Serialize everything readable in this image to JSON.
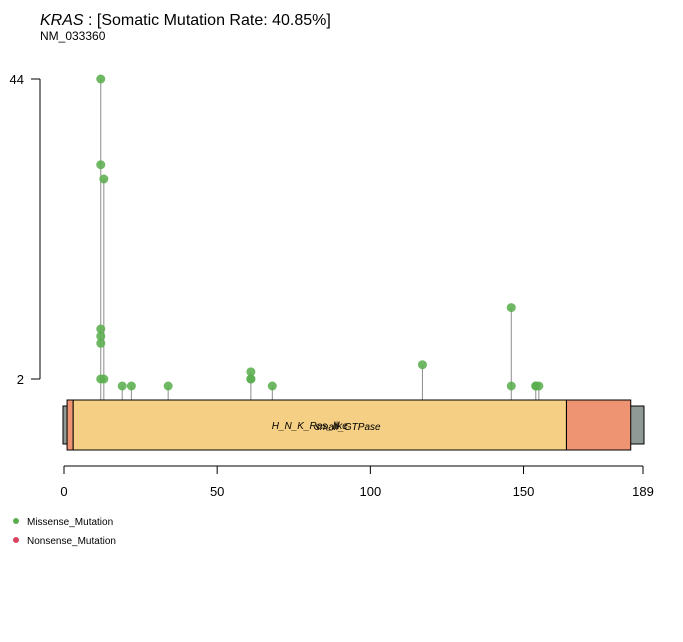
{
  "chart_data": {
    "type": "lollipop",
    "gene": "KRAS",
    "title_suffix": " : [Somatic Mutation Rate: 40.85%]",
    "transcript": "NM_033360",
    "protein_length": 189,
    "x_ticks": [
      0,
      50,
      100,
      150,
      189
    ],
    "y_ticks": [
      2,
      44
    ],
    "y_range": [
      2,
      44
    ],
    "domains": [
      {
        "name": "H_N_K_Ras_like",
        "start": 3,
        "end": 164,
        "color": "#F4CF84"
      },
      {
        "name": "small_GTPase",
        "start": 2,
        "end": 164,
        "color": "#F4CF84"
      },
      {
        "name": "",
        "start": 1,
        "end": 3,
        "color": "#EE9473"
      },
      {
        "name": "",
        "start": 164,
        "end": 185,
        "color": "#EE9473"
      }
    ],
    "domain_label": "H_N_K_Ras_like",
    "domain_label_overlap": "small_GTPase",
    "mutations": [
      {
        "position": 12,
        "count": 44,
        "type": "Missense_Mutation"
      },
      {
        "position": 12,
        "count": 32,
        "type": "Missense_Mutation"
      },
      {
        "position": 13,
        "count": 30,
        "type": "Missense_Mutation"
      },
      {
        "position": 12,
        "count": 9,
        "type": "Missense_Mutation"
      },
      {
        "position": 12,
        "count": 8,
        "type": "Missense_Mutation"
      },
      {
        "position": 12,
        "count": 7,
        "type": "Missense_Mutation"
      },
      {
        "position": 12,
        "count": 2,
        "type": "Missense_Mutation"
      },
      {
        "position": 13,
        "count": 2,
        "type": "Missense_Mutation"
      },
      {
        "position": 19,
        "count": 1,
        "type": "Missense_Mutation"
      },
      {
        "position": 22,
        "count": 1,
        "type": "Missense_Mutation"
      },
      {
        "position": 34,
        "count": 1,
        "type": "Missense_Mutation"
      },
      {
        "position": 61,
        "count": 3,
        "type": "Missense_Mutation"
      },
      {
        "position": 61,
        "count": 2,
        "type": "Missense_Mutation"
      },
      {
        "position": 61,
        "count": 2,
        "type": "Missense_Mutation"
      },
      {
        "position": 68,
        "count": 1,
        "type": "Missense_Mutation"
      },
      {
        "position": 117,
        "count": 4,
        "type": "Missense_Mutation"
      },
      {
        "position": 146,
        "count": 12,
        "type": "Missense_Mutation"
      },
      {
        "position": 146,
        "count": 1,
        "type": "Missense_Mutation"
      },
      {
        "position": 154,
        "count": 1,
        "type": "Missense_Mutation"
      },
      {
        "position": 154,
        "count": 1,
        "type": "Missense_Mutation"
      },
      {
        "position": 155,
        "count": 1,
        "type": "Missense_Mutation"
      }
    ],
    "legend": [
      {
        "label": "Missense_Mutation",
        "color": "#5BAE4F"
      },
      {
        "label": "Nonsense_Mutation",
        "color": "#D94560"
      }
    ],
    "colors": {
      "missense": "#5BAE4F",
      "nonsense": "#D94560",
      "stem": "#8C8C8C",
      "protein_backbone": "#8F9A97",
      "axis": "#000000"
    }
  }
}
